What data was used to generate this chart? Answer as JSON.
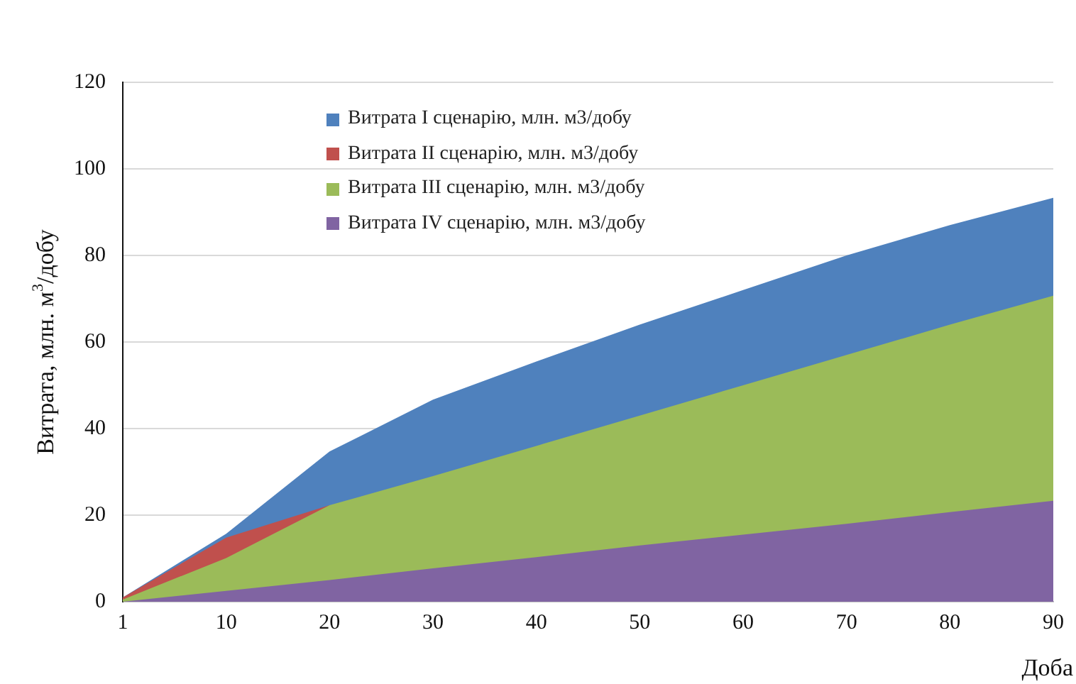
{
  "chart_data": {
    "type": "area",
    "xlabel": "Доба",
    "ylabel": "Витрата, млн. м$^{3}$/добу",
    "categories": [
      "1",
      "10",
      "20",
      "30",
      "40",
      "50",
      "60",
      "70",
      "80",
      "90"
    ],
    "series": [
      {
        "name": "Витрата I сценарію, млн. м3/добу",
        "color": "#4f81bd",
        "values": [
          1,
          15.7,
          34.7,
          46.7,
          55.5,
          64,
          72,
          80,
          87,
          93.3
        ]
      },
      {
        "name": "Витрата II сценарію, млн. м3/добу",
        "color": "#c0504d",
        "values": [
          1,
          14.8,
          22.3,
          null,
          null,
          null,
          null,
          null,
          null,
          null
        ]
      },
      {
        "name": "Витрата III сценарію, млн. м3/добу",
        "color": "#9bbb59",
        "values": [
          0.5,
          10.1,
          22.3,
          29,
          36,
          43,
          50,
          57,
          64,
          70.7
        ]
      },
      {
        "name": "Витрата IV сценарію, млн. м3/добу",
        "color": "#8064a2",
        "values": [
          0,
          2.5,
          5,
          7.7,
          10.3,
          13,
          15.5,
          18,
          20.7,
          23.3
        ]
      }
    ],
    "ylim": [
      0,
      120
    ],
    "yticks": [
      0,
      20,
      40,
      60,
      80,
      100,
      120
    ],
    "grid": "y",
    "legend": "top"
  }
}
